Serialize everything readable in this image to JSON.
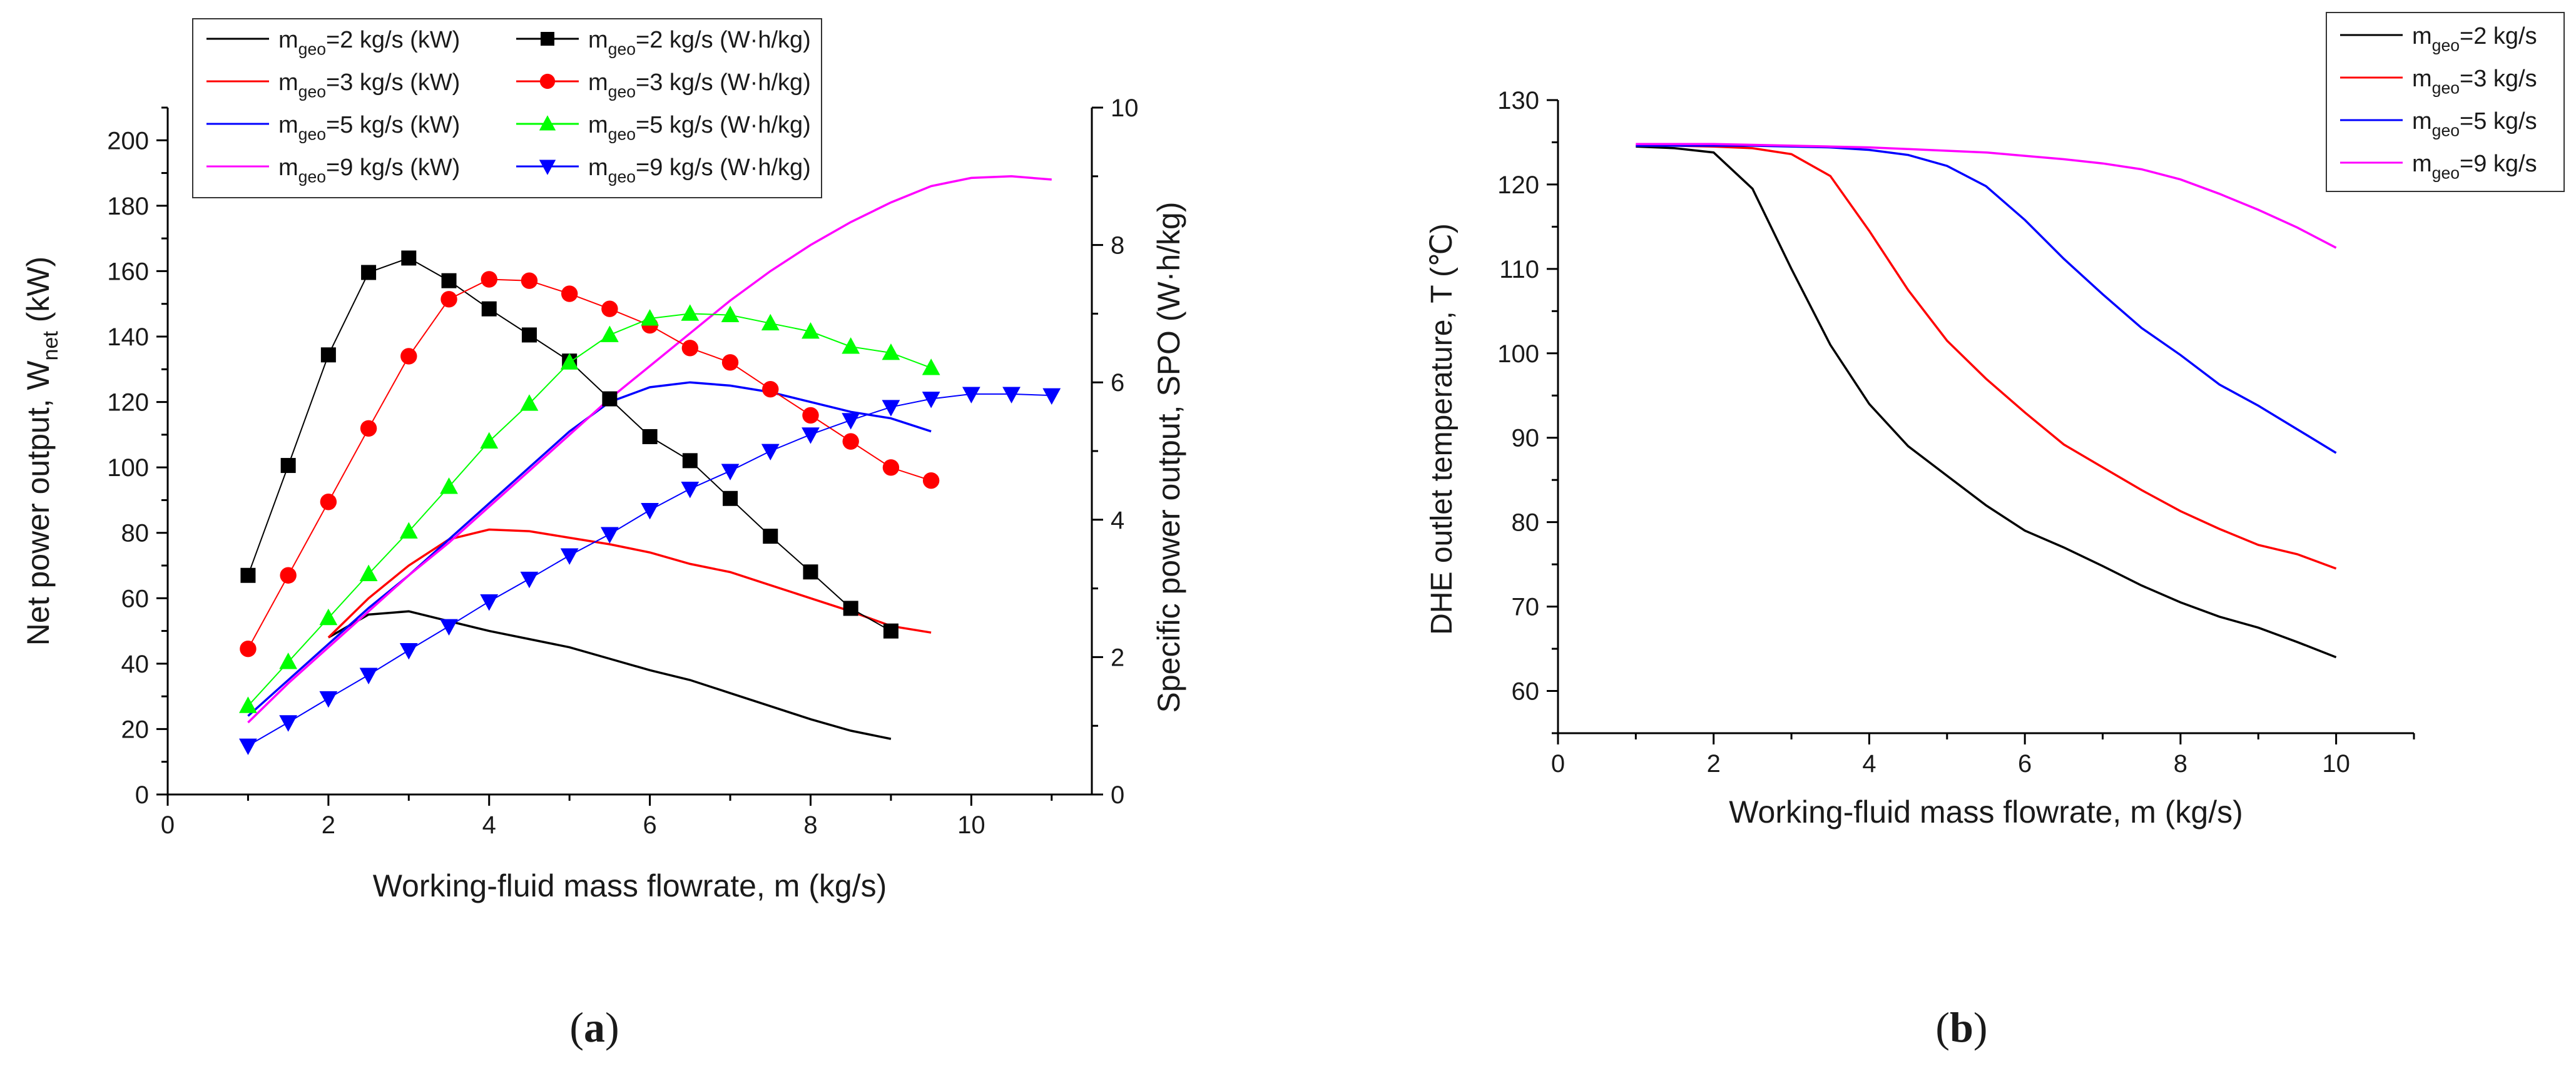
{
  "chart_data": [
    {
      "id": "a",
      "type": "line",
      "panel_label": "a",
      "xlabel": "Working-fluid mass flowrate, m (kg/s)",
      "ylabel_main": "Net power output, W",
      "ylabel_sub": "net",
      "ylabel_unit": " (kW)",
      "y2label": "Specific power output, SPO (W·h/kg)",
      "xlim": [
        0,
        11.5
      ],
      "ylim": [
        0,
        210
      ],
      "y2lim": [
        0,
        10
      ],
      "x_ticks": [
        0,
        2,
        4,
        6,
        8,
        10
      ],
      "y_ticks": [
        0,
        20,
        40,
        60,
        80,
        100,
        120,
        140,
        160,
        180,
        200
      ],
      "y2_ticks": [
        0,
        2,
        4,
        6,
        8,
        10
      ],
      "legend_position": "top-left",
      "legend": [
        {
          "pre": "m",
          "sub": "geo",
          "post": "=2 kg/s (kW)",
          "color": "#000000",
          "marker": "none"
        },
        {
          "pre": "m",
          "sub": "geo",
          "post": "=2 kg/s (W·h/kg)",
          "color": "#000000",
          "marker": "square"
        },
        {
          "pre": "m",
          "sub": "geo",
          "post": "=3 kg/s (kW)",
          "color": "#ff0000",
          "marker": "none"
        },
        {
          "pre": "m",
          "sub": "geo",
          "post": "=3 kg/s (W·h/kg)",
          "color": "#ff0000",
          "marker": "circle"
        },
        {
          "pre": "m",
          "sub": "geo",
          "post": "=5 kg/s (kW)",
          "color": "#0000ff",
          "marker": "none"
        },
        {
          "pre": "m",
          "sub": "geo",
          "post": "=5 kg/s (W·h/kg)",
          "color": "#00ff00",
          "marker": "triangle-up"
        },
        {
          "pre": "m",
          "sub": "geo",
          "post": "=9 kg/s (kW)",
          "color": "#ff00ff",
          "marker": "none"
        },
        {
          "pre": "m",
          "sub": "geo",
          "post": "=9 kg/s (W·h/kg)",
          "color": "#0000ff",
          "marker": "triangle-down"
        }
      ],
      "series": [
        {
          "name": "mgeo=2 kg/s (kW)",
          "axis": "left",
          "color": "#000000",
          "marker": "none",
          "x": [
            2,
            2.5,
            3,
            3.5,
            4,
            4.5,
            5,
            5.5,
            6,
            6.5,
            7,
            7.5,
            8,
            8.5,
            9
          ],
          "y": [
            48,
            55,
            56,
            53,
            50,
            47.5,
            45,
            41.5,
            38,
            35,
            31,
            27,
            23,
            19.5,
            17
          ]
        },
        {
          "name": "mgeo=3 kg/s (kW)",
          "axis": "left",
          "color": "#ff0000",
          "marker": "none",
          "x": [
            2,
            2.5,
            3,
            3.5,
            4,
            4.5,
            5,
            5.5,
            6,
            6.5,
            7,
            7.5,
            8,
            8.5,
            9,
            9.5
          ],
          "y": [
            48,
            60,
            70,
            78,
            81,
            80.5,
            78.5,
            76.5,
            74,
            70.5,
            68,
            64,
            60,
            56,
            51.5,
            49.5
          ]
        },
        {
          "name": "mgeo=5 kg/s (kW)",
          "axis": "left",
          "color": "#0000ff",
          "marker": "none",
          "x": [
            1,
            1.5,
            2,
            2.5,
            3,
            3.5,
            4,
            4.5,
            5,
            5.5,
            6,
            6.5,
            7,
            7.5,
            8,
            8.5,
            9,
            9.5
          ],
          "y": [
            24,
            35,
            46,
            57,
            67,
            78,
            89,
            100,
            111,
            120,
            124.5,
            126,
            125,
            123,
            120,
            117,
            115,
            111
          ]
        },
        {
          "name": "mgeo=9 kg/s (kW)",
          "axis": "left",
          "color": "#ff00ff",
          "marker": "none",
          "x": [
            1,
            1.5,
            2,
            2.5,
            3,
            3.5,
            4,
            4.5,
            5,
            5.5,
            6,
            6.5,
            7,
            7.5,
            8,
            8.5,
            9,
            9.5,
            10,
            10.5,
            11
          ],
          "y": [
            22,
            34,
            45,
            56,
            67,
            77,
            88,
            99,
            110,
            121,
            131,
            141,
            151,
            160,
            168,
            175,
            181,
            186,
            188.5,
            189,
            188
          ]
        },
        {
          "name": "mgeo=2 kg/s (W·h/kg)",
          "axis": "right",
          "color": "#000000",
          "marker": "square",
          "x": [
            1,
            1.5,
            2,
            2.5,
            3,
            3.5,
            4,
            4.5,
            5,
            5.5,
            6,
            6.5,
            7,
            7.5,
            8,
            8.5,
            9
          ],
          "y": [
            3.19,
            4.79,
            6.4,
            7.6,
            7.81,
            7.48,
            7.07,
            6.69,
            6.31,
            5.76,
            5.21,
            4.86,
            4.31,
            3.76,
            3.24,
            2.71,
            2.38
          ]
        },
        {
          "name": "mgeo=3 kg/s (W·h/kg)",
          "axis": "right",
          "color": "#ff0000",
          "marker": "circle",
          "x": [
            1,
            1.5,
            2,
            2.5,
            3,
            3.5,
            4,
            4.5,
            5,
            5.5,
            6,
            6.5,
            7,
            7.5,
            8,
            8.5,
            9,
            9.5
          ],
          "y": [
            2.12,
            3.19,
            4.26,
            5.33,
            6.38,
            7.21,
            7.5,
            7.48,
            7.29,
            7.07,
            6.83,
            6.5,
            6.29,
            5.9,
            5.52,
            5.14,
            4.76,
            4.57
          ]
        },
        {
          "name": "mgeo=5 kg/s (W·h/kg)",
          "axis": "right",
          "color": "#00ff00",
          "marker": "triangle-up",
          "x": [
            1,
            1.5,
            2,
            2.5,
            3,
            3.5,
            4,
            4.5,
            5,
            5.5,
            6,
            6.5,
            7,
            7.5,
            8,
            8.5,
            9,
            9.5
          ],
          "y": [
            1.29,
            1.93,
            2.57,
            3.21,
            3.83,
            4.48,
            5.14,
            5.69,
            6.29,
            6.69,
            6.93,
            7.0,
            6.98,
            6.86,
            6.74,
            6.52,
            6.43,
            6.21
          ]
        },
        {
          "name": "mgeo=9 kg/s (W·h/kg)",
          "axis": "right",
          "color": "#0000ff",
          "marker": "triangle-down",
          "x": [
            1,
            1.5,
            2,
            2.5,
            3,
            3.5,
            4,
            4.5,
            5,
            5.5,
            6,
            6.5,
            7,
            7.5,
            8,
            8.5,
            9,
            9.5,
            10,
            10.5,
            11
          ],
          "y": [
            0.71,
            1.05,
            1.4,
            1.74,
            2.1,
            2.45,
            2.81,
            3.14,
            3.48,
            3.79,
            4.14,
            4.45,
            4.71,
            5.0,
            5.24,
            5.45,
            5.64,
            5.76,
            5.83,
            5.83,
            5.81
          ]
        }
      ]
    },
    {
      "id": "b",
      "type": "line",
      "panel_label": "b",
      "xlabel": "Working-fluid mass flowrate, m (kg/s)",
      "ylabel": "DHE outlet temperature, T (℃)",
      "xlim": [
        0,
        11
      ],
      "ylim": [
        55,
        130
      ],
      "x_ticks": [
        0,
        2,
        4,
        6,
        8,
        10
      ],
      "y_ticks": [
        60,
        70,
        80,
        90,
        100,
        110,
        120,
        130
      ],
      "legend_position": "top-right",
      "legend": [
        {
          "pre": "m",
          "sub": "geo",
          "post": "=2 kg/s",
          "color": "#000000"
        },
        {
          "pre": "m",
          "sub": "geo",
          "post": "=3 kg/s",
          "color": "#ff0000"
        },
        {
          "pre": "m",
          "sub": "geo",
          "post": "=5 kg/s",
          "color": "#0000ff"
        },
        {
          "pre": "m",
          "sub": "geo",
          "post": "=9 kg/s",
          "color": "#ff00ff"
        }
      ],
      "series": [
        {
          "name": "mgeo=2 kg/s",
          "color": "#000000",
          "x": [
            1,
            1.5,
            2,
            2.5,
            3,
            3.5,
            4,
            4.5,
            5,
            5.5,
            6,
            6.5,
            7,
            7.5,
            8,
            8.5,
            9,
            9.5,
            10
          ],
          "y": [
            124.5,
            124.3,
            123.8,
            119.5,
            110,
            101,
            94,
            89,
            85.5,
            82,
            79,
            77,
            74.8,
            72.5,
            70.5,
            68.8,
            67.5,
            65.8,
            64
          ]
        },
        {
          "name": "mgeo=3 kg/s",
          "color": "#ff0000",
          "x": [
            1,
            1.5,
            2,
            2.5,
            3,
            3.5,
            4,
            4.5,
            5,
            5.5,
            6,
            6.5,
            7,
            7.5,
            8,
            8.5,
            9,
            9.5,
            10
          ],
          "y": [
            124.6,
            124.6,
            124.5,
            124.3,
            123.6,
            121,
            114.5,
            107.5,
            101.5,
            97,
            93,
            89.2,
            86.5,
            83.8,
            81.3,
            79.2,
            77.3,
            76.2,
            74.5
          ]
        },
        {
          "name": "mgeo=5 kg/s",
          "color": "#0000ff",
          "x": [
            1,
            1.5,
            2,
            2.5,
            3,
            3.5,
            4,
            4.5,
            5,
            5.5,
            6,
            6.5,
            7,
            7.5,
            8,
            8.5,
            9,
            9.5,
            10
          ],
          "y": [
            124.6,
            124.6,
            124.6,
            124.6,
            124.5,
            124.4,
            124.1,
            123.5,
            122.2,
            119.8,
            115.8,
            111.2,
            107,
            103,
            99.8,
            96.3,
            93.8,
            91,
            88.2
          ]
        },
        {
          "name": "mgeo=9 kg/s",
          "color": "#ff00ff",
          "x": [
            1,
            1.5,
            2,
            2.5,
            3,
            3.5,
            4,
            4.5,
            5,
            5.5,
            6,
            6.5,
            7,
            7.5,
            8,
            8.5,
            9,
            9.5,
            10
          ],
          "y": [
            124.8,
            124.8,
            124.8,
            124.7,
            124.6,
            124.5,
            124.4,
            124.2,
            124,
            123.8,
            123.4,
            123,
            122.5,
            121.8,
            120.6,
            118.9,
            117,
            114.9,
            112.5
          ]
        }
      ]
    }
  ]
}
